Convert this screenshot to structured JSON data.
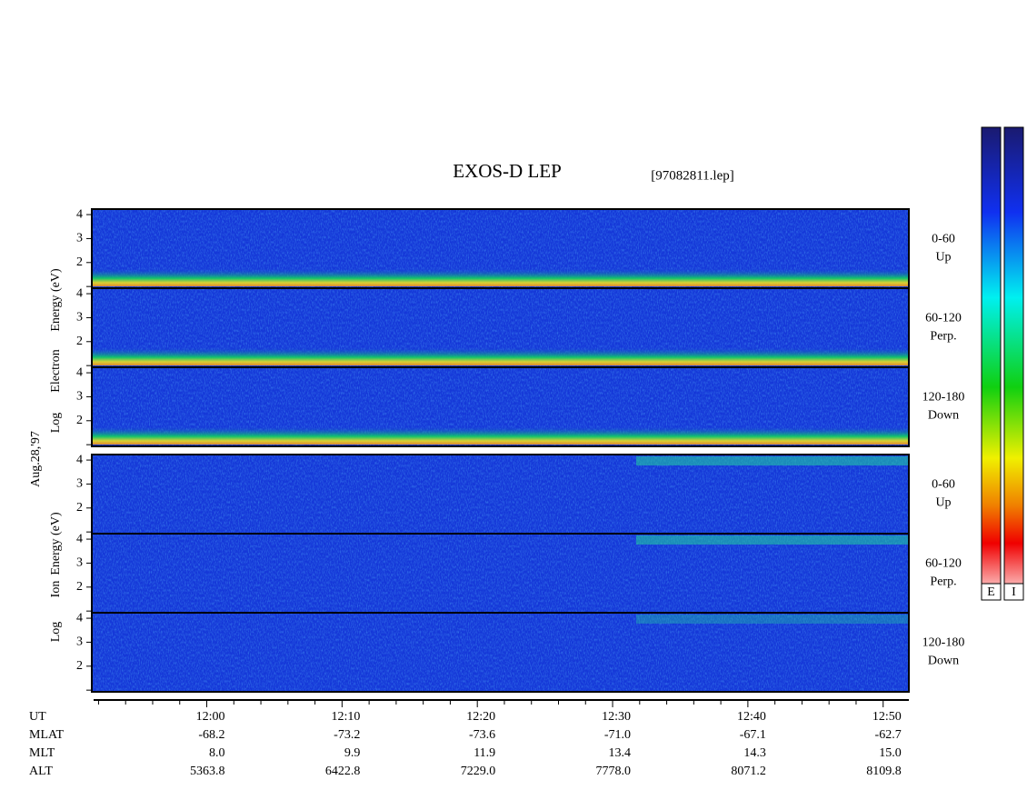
{
  "header": {
    "title": "EXOS-D LEP",
    "file": "[97082811.lep]"
  },
  "date": "Aug.28,'97",
  "electron": {
    "axis_label": [
      "Log",
      "Electron",
      "Energy (eV)"
    ],
    "panels": [
      {
        "angle": "0-60",
        "direction": "Up"
      },
      {
        "angle": "60-120",
        "direction": "Perp."
      },
      {
        "angle": "120-180",
        "direction": "Down"
      }
    ]
  },
  "ion": {
    "axis_label": [
      "Log",
      "Ion",
      "Energy (eV)"
    ],
    "panels": [
      {
        "angle": "0-60",
        "direction": "Up"
      },
      {
        "angle": "60-120",
        "direction": "Perp."
      },
      {
        "angle": "120-180",
        "direction": "Down"
      }
    ]
  },
  "energy_axis": {
    "ylim": [
      0.93,
      4.23
    ],
    "yticks": [
      2,
      3,
      4
    ],
    "minor_yticks": [
      1
    ]
  },
  "time_axis": {
    "xlim": [
      711.5,
      771.9
    ],
    "xticks": [
      {
        "value": 720,
        "label": "12:00"
      },
      {
        "value": 730,
        "label": "12:10"
      },
      {
        "value": 740,
        "label": "12:20"
      },
      {
        "value": 750,
        "label": "12:30"
      },
      {
        "value": 760,
        "label": "12:40"
      },
      {
        "value": 770,
        "label": "12:50"
      }
    ],
    "minor_xticks": [
      712,
      714,
      716,
      718,
      722,
      724,
      726,
      728,
      732,
      734,
      736,
      738,
      742,
      744,
      746,
      748,
      752,
      754,
      756,
      758,
      762,
      764,
      766,
      768
    ]
  },
  "orbit": {
    "time_label": "UT",
    "rows": [
      {
        "name": "MLAT",
        "values": [
          "-68.2",
          "-73.2",
          "-73.6",
          "-71.0",
          "-67.1",
          "-62.7"
        ]
      },
      {
        "name": "MLT",
        "values": [
          "8.0",
          "9.9",
          "11.9",
          "13.4",
          "14.3",
          "15.0"
        ]
      },
      {
        "name": "ALT",
        "values": [
          "5363.8",
          "6422.8",
          "7229.0",
          "7778.0",
          "8071.2",
          "8109.8"
        ]
      }
    ]
  },
  "colorbar_labels": [
    "E",
    "I"
  ]
}
